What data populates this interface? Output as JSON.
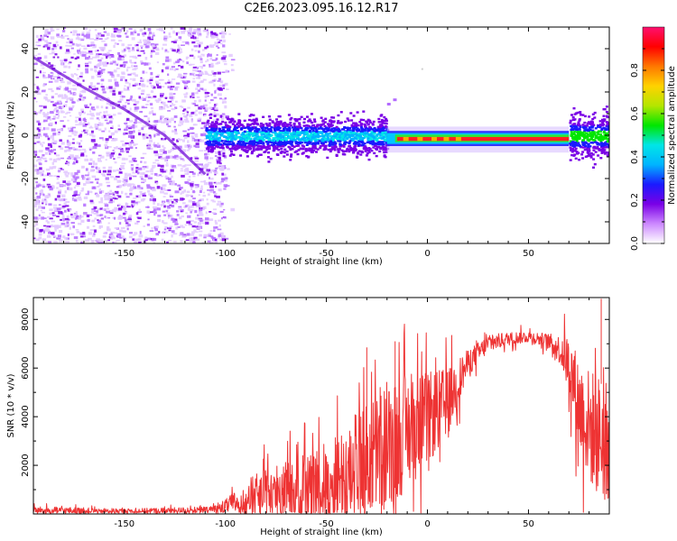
{
  "title": "C2E6.2023.095.16.12.R17",
  "chart_data": [
    {
      "type": "heatmap",
      "title": "C2E6.2023.095.16.12.R17",
      "xlabel": "Height of straight line (km)",
      "ylabel": "Frequency (Hz)",
      "xlim": [
        -195,
        90
      ],
      "ylim": [
        -50,
        50
      ],
      "x_ticks": [
        -150,
        -100,
        -50,
        0,
        50
      ],
      "y_ticks": [
        -40,
        -20,
        0,
        20,
        40
      ],
      "colorbar": {
        "label": "Normalized spectral amplitude",
        "range": [
          0,
          1
        ],
        "ticks": [
          "0.0",
          "0.2",
          "0.4",
          "0.6",
          "0.8"
        ],
        "colors": [
          "#ffffff",
          "#cc88ff",
          "#7a00e6",
          "#1a1aff",
          "#00b4ff",
          "#00e6e6",
          "#00e600",
          "#b4e600",
          "#ffd200",
          "#ff7800",
          "#ff0000",
          "#ff1070"
        ]
      },
      "features": [
        {
          "name": "scatter_region",
          "x_range": [
            -195,
            -100
          ],
          "y_range": [
            -50,
            50
          ],
          "level": 0.1
        },
        {
          "name": "descending_track",
          "x": [
            -195,
            -170,
            -150,
            -130,
            -110
          ],
          "y": [
            36,
            22,
            12,
            0,
            -18
          ],
          "level": 0.2
        },
        {
          "name": "noisy_band",
          "x_range": [
            -110,
            -20
          ],
          "center_y": 0,
          "half_width_hz": 6,
          "level": 0.3
        },
        {
          "name": "peak_band",
          "x_range": [
            -15,
            70
          ],
          "center_y": -2,
          "level": 0.95
        },
        {
          "name": "edge_band",
          "x_range": [
            70,
            90
          ],
          "center_y": 0,
          "half_width_hz": 8,
          "level": 0.35
        }
      ]
    },
    {
      "type": "line",
      "xlabel": "Height of straight line (km)",
      "ylabel": "SNR (10 * v/v)",
      "xlim": [
        -195,
        90
      ],
      "ylim": [
        0,
        8900
      ],
      "x_ticks": [
        -150,
        -100,
        -50,
        0,
        50
      ],
      "y_ticks": [
        2000,
        4000,
        6000,
        8000
      ],
      "color": "#ee3333",
      "envelope": {
        "x": [
          -195,
          -150,
          -110,
          -100,
          -90,
          -80,
          -70,
          -60,
          -50,
          -40,
          -30,
          -20,
          -10,
          0,
          10,
          20,
          30,
          40,
          50,
          60,
          65,
          70,
          75,
          80,
          85,
          90
        ],
        "mean": [
          150,
          120,
          150,
          300,
          650,
          850,
          1000,
          1100,
          1300,
          1700,
          2200,
          2700,
          3400,
          3900,
          4600,
          6200,
          7000,
          7200,
          7300,
          7100,
          6800,
          6200,
          4500,
          3600,
          3200,
          2900
        ],
        "spread": [
          200,
          120,
          180,
          350,
          900,
          1300,
          1500,
          1800,
          2200,
          2700,
          3000,
          3300,
          3000,
          2400,
          1800,
          700,
          450,
          350,
          300,
          400,
          700,
          1500,
          2500,
          3000,
          3200,
          3000
        ]
      },
      "spikes": [
        {
          "x": -30,
          "y": 6850
        },
        {
          "x": -16,
          "y": 7100
        },
        {
          "x": 86,
          "y": 8850
        }
      ]
    }
  ]
}
